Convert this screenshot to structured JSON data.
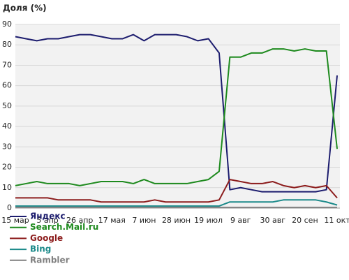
{
  "chart_data": {
    "type": "line",
    "title": "Доля (%)",
    "categories": [
      "15 мар",
      null,
      null,
      "5 апр",
      null,
      null,
      "26 апр",
      null,
      null,
      "17 мая",
      null,
      null,
      "7 июн",
      null,
      null,
      "28 июн",
      null,
      null,
      "19 июл",
      null,
      null,
      "9 авг",
      null,
      null,
      "30 авг",
      null,
      null,
      "20 сен",
      null,
      null,
      "11 окт"
    ],
    "series": [
      {
        "name": "Яндекс",
        "color": "#1c1c6e",
        "values": [
          84,
          83,
          82,
          83,
          83,
          84,
          85,
          85,
          84,
          83,
          83,
          85,
          82,
          85,
          85,
          85,
          84,
          82,
          83,
          76,
          9,
          10,
          9,
          8,
          8,
          8,
          8,
          8,
          8,
          9,
          65
        ]
      },
      {
        "name": "Search.Mail.ru",
        "color": "#1e8a1e",
        "values": [
          11,
          12,
          13,
          12,
          12,
          12,
          11,
          12,
          13,
          13,
          13,
          12,
          14,
          12,
          12,
          12,
          12,
          13,
          14,
          18,
          74,
          74,
          76,
          76,
          78,
          78,
          77,
          78,
          77,
          77,
          29
        ]
      },
      {
        "name": "Google",
        "color": "#8c1c1c",
        "values": [
          5,
          5,
          5,
          5,
          4,
          4,
          4,
          4,
          3,
          3,
          3,
          3,
          3,
          4,
          3,
          3,
          3,
          3,
          3,
          4,
          14,
          13,
          12,
          12,
          13,
          11,
          10,
          11,
          10,
          11,
          5
        ]
      },
      {
        "name": "Bing",
        "color": "#1c8a8a",
        "values": [
          1,
          1,
          1,
          1,
          1,
          1,
          1,
          1,
          1,
          1,
          1,
          1,
          1,
          1,
          1,
          1,
          1,
          1,
          1,
          1,
          3,
          3,
          3,
          3,
          3,
          4,
          4,
          4,
          4,
          3,
          1.5
        ]
      },
      {
        "name": "Rambler",
        "color": "#808080",
        "values": [
          0.3,
          0.3,
          0.3,
          0.3,
          0.3,
          0.3,
          0.3,
          0.3,
          0.3,
          0.3,
          0.3,
          0.3,
          0.3,
          0.3,
          0.3,
          0.3,
          0.3,
          0.3,
          0.3,
          0.3,
          0.3,
          0.3,
          0.3,
          0.3,
          0.3,
          0.3,
          0.3,
          0.3,
          0.3,
          0.3,
          0.3
        ]
      }
    ],
    "ylim": [
      0,
      90
    ],
    "yticks": [
      0,
      10,
      20,
      30,
      40,
      50,
      60,
      70,
      80,
      90
    ],
    "grid": true
  }
}
